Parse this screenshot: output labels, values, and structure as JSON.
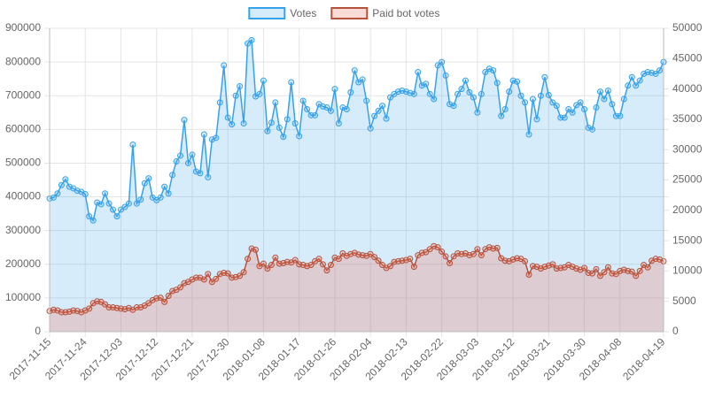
{
  "chart_data": {
    "type": "line",
    "categories": [
      "2017-11-15",
      null,
      null,
      null,
      null,
      null,
      null,
      null,
      null,
      "2017-11-24",
      null,
      null,
      null,
      null,
      null,
      null,
      null,
      null,
      "2017-12-03",
      null,
      null,
      null,
      null,
      null,
      null,
      null,
      null,
      "2017-12-12",
      null,
      null,
      null,
      null,
      null,
      null,
      null,
      null,
      "2017-12-21",
      null,
      null,
      null,
      null,
      null,
      null,
      null,
      null,
      "2017-12-30",
      null,
      null,
      null,
      null,
      null,
      null,
      null,
      null,
      "2018-01-08",
      null,
      null,
      null,
      null,
      null,
      null,
      null,
      null,
      "2018-01-17",
      null,
      null,
      null,
      null,
      null,
      null,
      null,
      null,
      "2018-01-26",
      null,
      null,
      null,
      null,
      null,
      null,
      null,
      null,
      "2018-02-04",
      null,
      null,
      null,
      null,
      null,
      null,
      null,
      null,
      "2018-02-13",
      null,
      null,
      null,
      null,
      null,
      null,
      null,
      null,
      "2018-02-22",
      null,
      null,
      null,
      null,
      null,
      null,
      null,
      null,
      "2018-03-03",
      null,
      null,
      null,
      null,
      null,
      null,
      null,
      null,
      "2018-03-12",
      null,
      null,
      null,
      null,
      null,
      null,
      null,
      null,
      "2018-03-21",
      null,
      null,
      null,
      null,
      null,
      null,
      null,
      null,
      "2018-03-30",
      null,
      null,
      null,
      null,
      null,
      null,
      null,
      null,
      "2018-04-08",
      null,
      null,
      null,
      null,
      null,
      null,
      null,
      null,
      null,
      null,
      "2018-04-19"
    ],
    "series": [
      {
        "name": "Votes",
        "color": "#36a2eb",
        "fill": "rgba(54,162,235,0.2)",
        "values": [
          395000,
          398000,
          410000,
          435000,
          452000,
          430000,
          425000,
          418000,
          415000,
          408000,
          342000,
          330000,
          383000,
          378000,
          410000,
          380000,
          362000,
          342000,
          362000,
          370000,
          380000,
          555000,
          380000,
          392000,
          440000,
          455000,
          398000,
          390000,
          398000,
          430000,
          410000,
          465000,
          505000,
          522000,
          628000,
          500000,
          525000,
          475000,
          470000,
          585000,
          458000,
          570000,
          575000,
          680000,
          790000,
          635000,
          615000,
          700000,
          728000,
          618000,
          855000,
          865000,
          698000,
          705000,
          745000,
          595000,
          620000,
          680000,
          605000,
          578000,
          630000,
          740000,
          618000,
          580000,
          685000,
          660000,
          642000,
          642000,
          675000,
          668000,
          665000,
          655000,
          720000,
          618000,
          665000,
          660000,
          710000,
          775000,
          740000,
          748000,
          685000,
          603000,
          640000,
          655000,
          670000,
          632000,
          695000,
          705000,
          712000,
          715000,
          712000,
          708000,
          705000,
          770000,
          730000,
          735000,
          705000,
          690000,
          790000,
          800000,
          760000,
          675000,
          670000,
          705000,
          720000,
          745000,
          710000,
          695000,
          650000,
          705000,
          770000,
          780000,
          775000,
          738000,
          640000,
          660000,
          712000,
          745000,
          742000,
          700000,
          680000,
          585000,
          690000,
          630000,
          700000,
          755000,
          702000,
          680000,
          670000,
          635000,
          635000,
          660000,
          650000,
          672000,
          680000,
          660000,
          605000,
          600000,
          665000,
          712000,
          690000,
          715000,
          675000,
          640000,
          640000,
          690000,
          730000,
          755000,
          730000,
          745000,
          765000,
          770000,
          768000,
          765000,
          775000,
          800000
        ]
      },
      {
        "name": "Paid bot votes",
        "color": "#b5523b",
        "fill": "rgba(240,110,90,0.25)",
        "axis": "y2",
        "values": [
          3400,
          3600,
          3500,
          3200,
          3200,
          3300,
          3500,
          3400,
          3200,
          3500,
          3800,
          4700,
          5000,
          4900,
          4500,
          4000,
          4000,
          3900,
          3800,
          3700,
          3900,
          3600,
          4000,
          4000,
          4300,
          4700,
          5200,
          5500,
          5600,
          4900,
          5900,
          6700,
          6900,
          7300,
          8000,
          8200,
          8600,
          8900,
          8900,
          8600,
          9500,
          8200,
          8700,
          9500,
          9700,
          9600,
          8900,
          9000,
          9200,
          9800,
          12000,
          13700,
          13500,
          10800,
          11200,
          10400,
          11000,
          12200,
          11200,
          11300,
          11500,
          11400,
          11800,
          11100,
          11000,
          10800,
          11000,
          11600,
          12000,
          11100,
          10100,
          11000,
          12200,
          12000,
          12900,
          12500,
          12800,
          13000,
          12700,
          12600,
          12500,
          12800,
          12300,
          11700,
          11000,
          10500,
          10800,
          11500,
          11600,
          11700,
          11800,
          12000,
          10700,
          12600,
          13000,
          13100,
          13600,
          14100,
          13900,
          13200,
          12400,
          11300,
          12400,
          12900,
          12800,
          12900,
          12600,
          12800,
          13600,
          12600,
          13600,
          13900,
          13700,
          13800,
          12100,
          11700,
          11600,
          11900,
          12100,
          12000,
          11600,
          9400,
          10800,
          10700,
          10400,
          10700,
          10900,
          11100,
          10400,
          10500,
          10600,
          11000,
          10700,
          10400,
          10200,
          10500,
          9700,
          9600,
          10300,
          9200,
          9800,
          10600,
          9600,
          9500,
          10000,
          10200,
          10000,
          9900,
          9200,
          10000,
          11000,
          10600,
          11700,
          12000,
          11900,
          11600
        ]
      }
    ],
    "ylim": [
      0,
      900000
    ],
    "yticks": [
      0,
      100000,
      200000,
      300000,
      400000,
      500000,
      600000,
      700000,
      800000,
      900000
    ],
    "y2lim": [
      0,
      50000
    ],
    "y2ticks": [
      0,
      5000,
      10000,
      15000,
      20000,
      25000,
      30000,
      35000,
      40000,
      45000,
      50000
    ],
    "grid": true,
    "legend": "top"
  }
}
